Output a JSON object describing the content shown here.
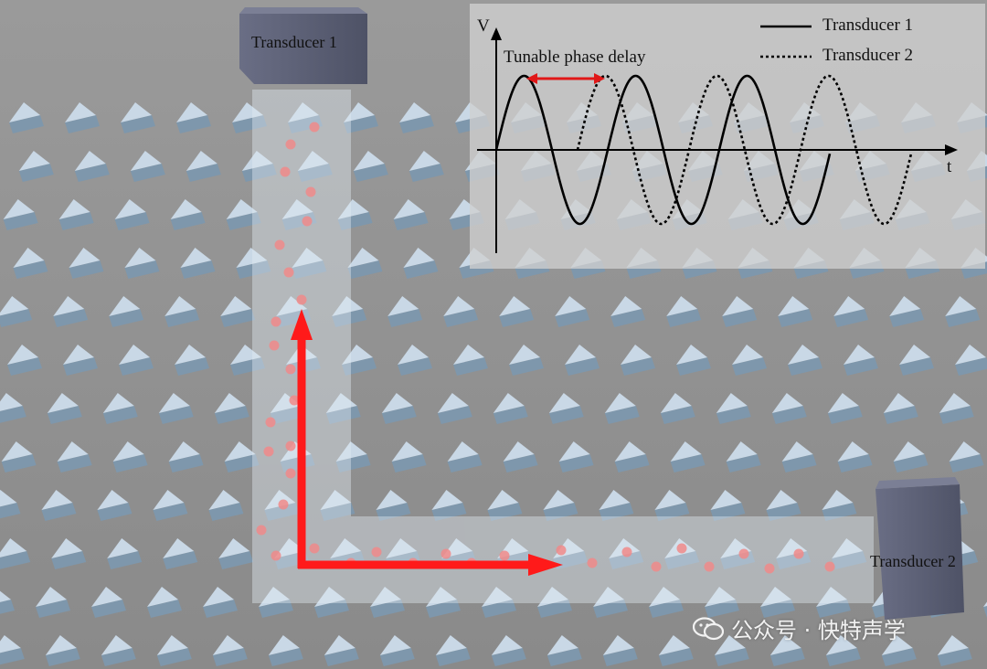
{
  "labels": {
    "transducer_1": "Transducer 1",
    "transducer_2": "Transducer 2",
    "phase_delay": "Tunable phase delay",
    "axis_v": "V",
    "axis_t": "t"
  },
  "legend": {
    "series_1": "Transducer 1",
    "series_2": "Transducer 2"
  },
  "watermark": {
    "text": "公众号 · 快特声学",
    "icon": "wechat-icon"
  },
  "colors": {
    "arrow": "#ff1a1a",
    "particle": "#f08a8a",
    "prism_top": "#c9d8e6",
    "prism_side": "#7e97ac",
    "transducer": "#5f6378",
    "channel": "#d3dbe3"
  }
}
